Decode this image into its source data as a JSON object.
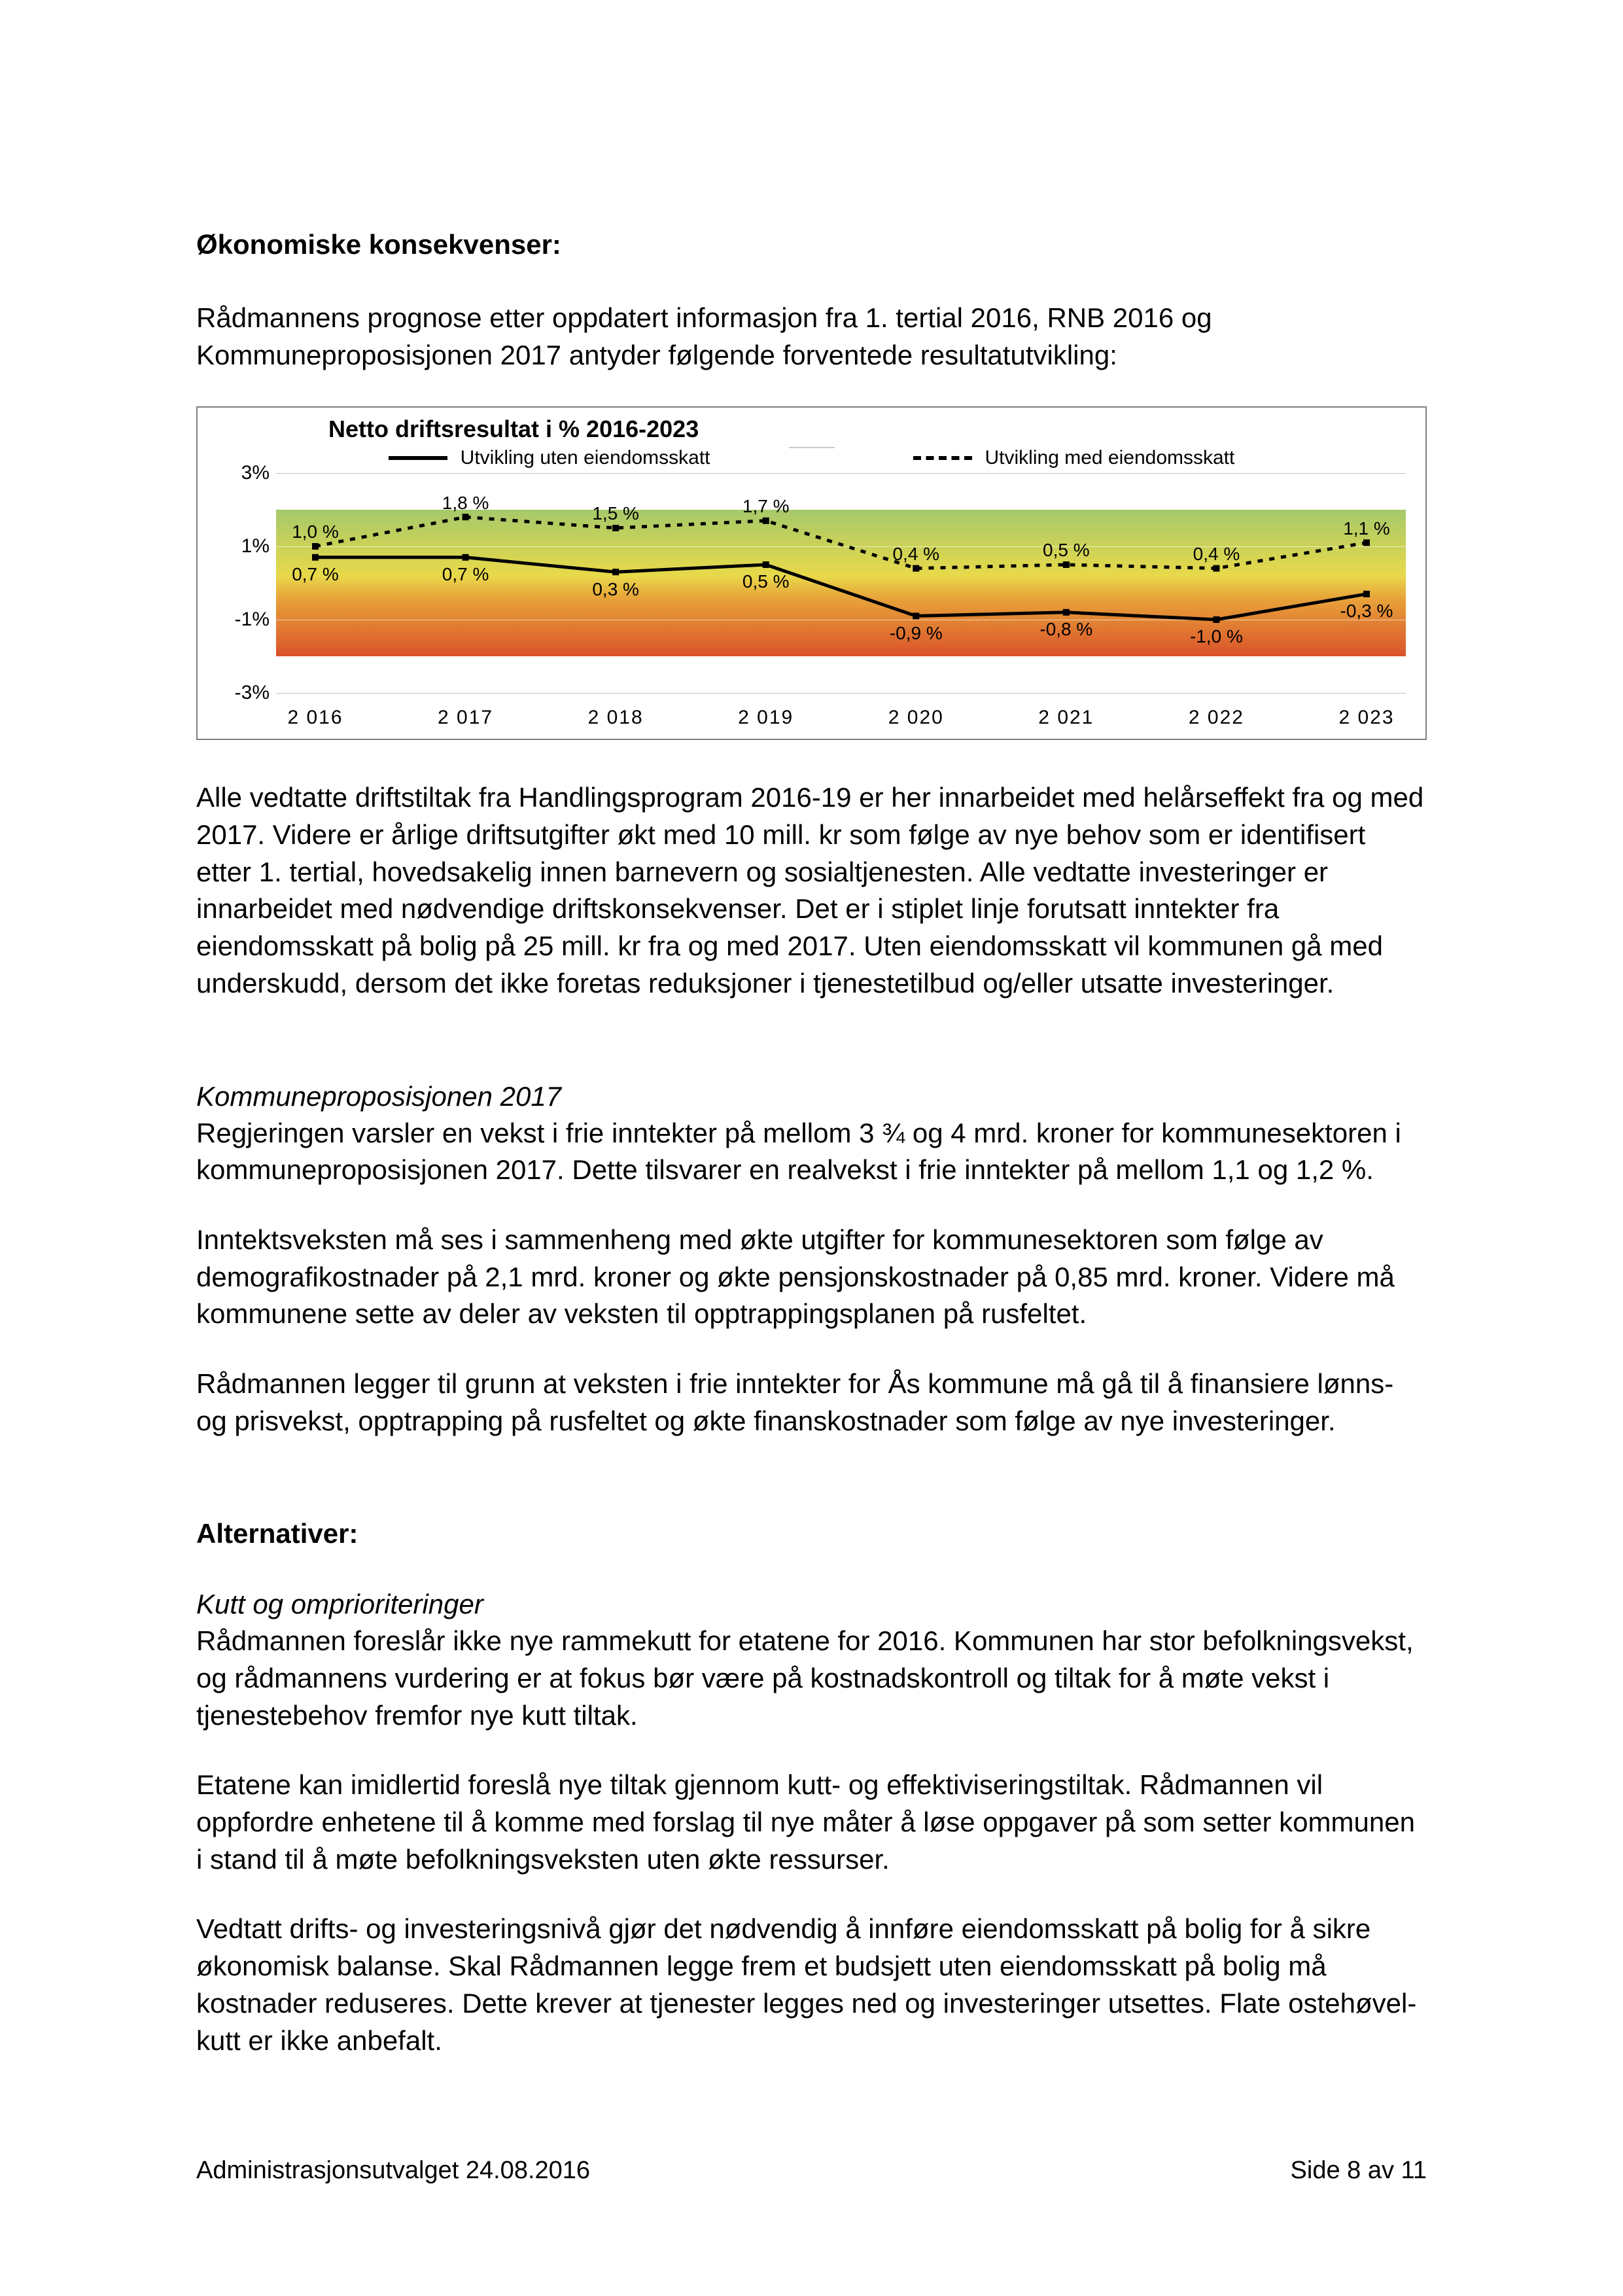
{
  "headings": {
    "h1": "Økonomiske konsekvenser:",
    "h2": "Alternativer:"
  },
  "paragraphs": {
    "intro": "Rådmannens prognose etter oppdatert informasjon fra 1. tertial 2016, RNB 2016 og Kommuneproposisjonen 2017 antyder følgende forventede resultatutvikling:",
    "after_chart": "Alle vedtatte driftstiltak fra Handlingsprogram 2016-19 er her innarbeidet med helårseffekt fra og med 2017. Videre er årlige driftsutgifter økt med 10 mill. kr som følge av nye behov som er identifisert etter 1. tertial, hovedsakelig innen barnevern og sosialtjenesten. Alle vedtatte investeringer er innarbeidet med nødvendige driftskonsekvenser.  Det er i stiplet linje forutsatt inntekter fra eiendomsskatt på bolig på 25 mill. kr fra og med 2017. Uten eiendomsskatt vil kommunen gå med underskudd, dersom det ikke foretas reduksjoner i tjenestetilbud og/eller utsatte investeringer.",
    "sub1_title": "Kommuneproposisjonen 2017",
    "sub1_p1": "Regjeringen varsler en vekst i frie inntekter på mellom 3 ¾ og 4 mrd. kroner for kommunesektoren i kommuneproposisjonen 2017.  Dette tilsvarer en realvekst i frie inntekter på mellom 1,1 og 1,2 %.",
    "sub1_p2": "Inntektsveksten må ses i sammenheng med økte utgifter for kommunesektoren som følge av demografikostnader på 2,1 mrd. kroner og økte pensjonskostnader på 0,85 mrd. kroner. Videre må kommunene sette av deler av veksten til opptrappingsplanen på rusfeltet.",
    "sub1_p3": "Rådmannen legger til grunn at veksten i frie inntekter for Ås kommune må gå til å finansiere lønns- og prisvekst, opptrapping på rusfeltet og økte finanskostnader som følge av nye investeringer.",
    "sub2_title": "Kutt og omprioriteringer",
    "sub2_p1": "Rådmannen foreslår ikke nye rammekutt for etatene for 2016. Kommunen har stor befolkningsvekst, og rådmannens vurdering er at fokus bør være på kostnadskontroll og tiltak for å møte vekst i tjenestebehov fremfor nye kutt tiltak.",
    "sub2_p2": "Etatene kan imidlertid foreslå nye tiltak gjennom kutt- og effektiviseringstiltak. Rådmannen vil oppfordre enhetene til å komme med forslag til nye måter å løse oppgaver på som setter kommunen i stand til å møte befolkningsveksten uten økte ressurser.",
    "sub2_p3": "Vedtatt drifts- og investeringsnivå gjør det nødvendig å innføre eiendomsskatt på bolig for å sikre økonomisk balanse. Skal Rådmannen legge frem et budsjett uten eiendomsskatt på bolig må kostnader reduseres.  Dette krever at tjenester legges ned og investeringer utsettes. Flate ostehøvel-kutt er ikke anbefalt."
  },
  "chart": {
    "title": "Netto driftsresultat i % 2016-2023",
    "legend_solid": "Utvikling uten eiendomsskatt",
    "legend_dash": "Utvikling med eiendomsskatt",
    "type": "line",
    "ylim": [
      -3,
      3
    ],
    "yticks": [
      -3,
      -1,
      1,
      3
    ],
    "ytick_labels": [
      "-3%",
      "-1%",
      "1%",
      "3%"
    ],
    "categories": [
      "2 016",
      "2 017",
      "2 018",
      "2 019",
      "2 020",
      "2 021",
      "2 022",
      "2 023"
    ],
    "series_solid": {
      "values": [
        0.7,
        0.7,
        0.3,
        0.5,
        -0.9,
        -0.8,
        -1.0,
        -0.3
      ],
      "labels": [
        "0,7 %",
        "0,7 %",
        "0,3 %",
        "0,5 %",
        "-0,9 %",
        "-0,8 %",
        "-1,0 %",
        "-0,3 %"
      ],
      "color": "#000000",
      "line_width": 5,
      "dash": "none"
    },
    "series_dash": {
      "values": [
        1.0,
        1.8,
        1.5,
        1.7,
        0.4,
        0.5,
        0.4,
        1.1
      ],
      "labels": [
        "1,0 %",
        "1,8 %",
        "1,5 %",
        "1,7 %",
        "0,4 %",
        "0,5 %",
        "0,4 %",
        "1,1 %"
      ],
      "color": "#000000",
      "line_width": 5,
      "dash": "8,10"
    },
    "gradient_top": "#a6c96a",
    "gradient_mid_top": "#e8d94a",
    "gradient_mid_bot": "#e8a43a",
    "gradient_bot": "#d9522a",
    "gradient_from_y": 2,
    "gradient_to_y": -2,
    "background": "#ffffff",
    "grid_color": "#ffffff"
  },
  "footer": {
    "left": "Administrasjonsutvalget  24.08.2016",
    "right": "Side 8 av 11"
  }
}
